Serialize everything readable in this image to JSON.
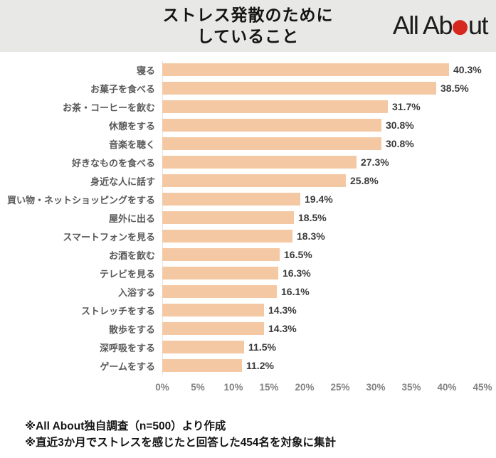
{
  "header": {
    "title_line1": "ストレス発散のために",
    "title_line2": "していること",
    "logo": {
      "text_before_dot": "All Ab",
      "text_after_dot": "ut",
      "dot_color": "#d7281f"
    }
  },
  "chart_data": {
    "type": "bar",
    "orientation": "horizontal",
    "title": "ストレス発散のためにしていること",
    "categories": [
      "寝る",
      "お菓子を食べる",
      "お茶・コーヒーを飲む",
      "休憩をする",
      "音楽を聴く",
      "好きなものを食べる",
      "身近な人に話す",
      "買い物・ネットショッピングをする",
      "屋外に出る",
      "スマートフォンを見る",
      "お酒を飲む",
      "テレビを見る",
      "入浴する",
      "ストレッチをする",
      "散歩をする",
      "深呼吸をする",
      "ゲームをする"
    ],
    "values": [
      40.3,
      38.5,
      31.7,
      30.8,
      30.8,
      27.3,
      25.8,
      19.4,
      18.5,
      18.3,
      16.5,
      16.3,
      16.1,
      14.3,
      14.3,
      11.5,
      11.2
    ],
    "value_labels": [
      "40.3%",
      "38.5%",
      "31.7%",
      "30.8%",
      "30.8%",
      "27.3%",
      "25.8%",
      "19.4%",
      "18.5%",
      "18.3%",
      "16.5%",
      "16.3%",
      "16.1%",
      "14.3%",
      "14.3%",
      "11.5%",
      "11.2%"
    ],
    "xlim": [
      0,
      45
    ],
    "x_ticks": [
      "0%",
      "5%",
      "10%",
      "15%",
      "20%",
      "25%",
      "30%",
      "35%",
      "40%",
      "45%"
    ],
    "bar_color": "#f4c8a3",
    "grid": false,
    "legend": false
  },
  "footer": {
    "note1": "※All About独自調査（n=500）より作成",
    "note2": "※直近3か月でストレスを感じたと回答した454名を対象に集計"
  }
}
